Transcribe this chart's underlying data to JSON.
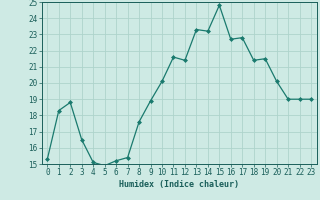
{
  "x": [
    0,
    1,
    2,
    3,
    4,
    5,
    6,
    7,
    8,
    9,
    10,
    11,
    12,
    13,
    14,
    15,
    16,
    17,
    18,
    19,
    20,
    21,
    22,
    23
  ],
  "y": [
    15.3,
    18.3,
    18.8,
    16.5,
    15.1,
    14.9,
    15.2,
    15.4,
    17.6,
    18.9,
    20.1,
    21.6,
    21.4,
    23.3,
    23.2,
    24.8,
    22.7,
    22.8,
    21.4,
    21.5,
    20.1,
    19.0,
    19.0,
    19.0
  ],
  "line_color": "#1a7a6e",
  "marker": "D",
  "marker_size": 2.0,
  "bg_color": "#ceeae4",
  "grid_color": "#aed4cc",
  "xlabel": "Humidex (Indice chaleur)",
  "ylim": [
    15,
    25
  ],
  "xlim": [
    -0.5,
    23.5
  ],
  "yticks": [
    15,
    16,
    17,
    18,
    19,
    20,
    21,
    22,
    23,
    24,
    25
  ],
  "xticks": [
    0,
    1,
    2,
    3,
    4,
    5,
    6,
    7,
    8,
    9,
    10,
    11,
    12,
    13,
    14,
    15,
    16,
    17,
    18,
    19,
    20,
    21,
    22,
    23
  ],
  "xlabel_fontsize": 6.0,
  "tick_fontsize": 5.5,
  "axis_text_color": "#1a5f5a",
  "linewidth": 0.9
}
